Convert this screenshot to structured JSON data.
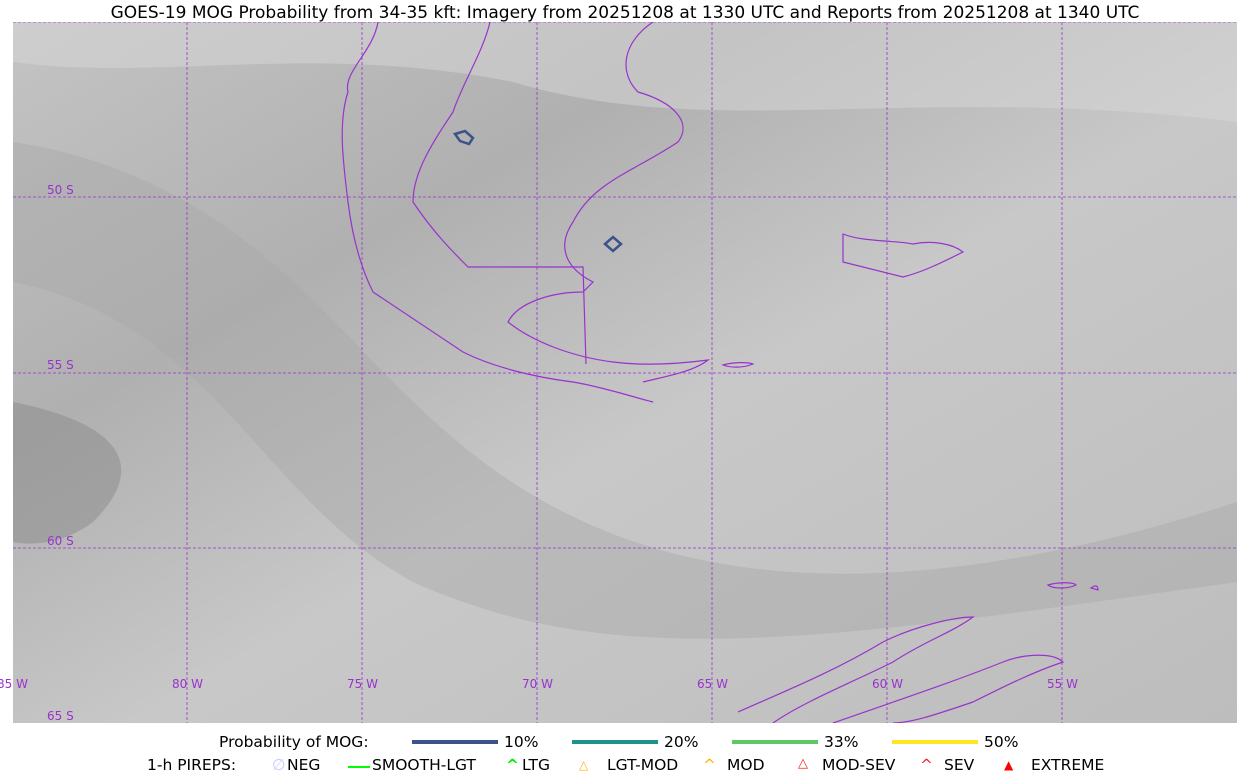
{
  "title": "GOES-19 MOG Probability from 34-35 kft: Imagery from 20251208 at 1330 UTC and Reports from 20251208 at 1340 UTC",
  "map": {
    "lon_labels": [
      "85 W",
      "80 W",
      "75 W",
      "70 W",
      "65 W",
      "60 W",
      "55 W"
    ],
    "lat_labels": [
      "50 S",
      "55 S",
      "60 S",
      "65 S"
    ],
    "coast_color": "#9933cc"
  },
  "legend": {
    "prob_title": "Probability of MOG:",
    "prob_items": [
      {
        "label": "10%",
        "color": "#3b528b"
      },
      {
        "label": "20%",
        "color": "#21918c"
      },
      {
        "label": "33%",
        "color": "#5ec962"
      },
      {
        "label": "50%",
        "color": "#fde725"
      }
    ],
    "pirep_title": "1-h PIREPS:",
    "pirep_items": [
      {
        "label": "NEG",
        "color": "#c8c8ff"
      },
      {
        "label": "SMOOTH-LGT",
        "color": "#00ff00"
      },
      {
        "label": "LTG",
        "color": "#00ee00"
      },
      {
        "label": "LGT-MOD",
        "color": "#ffb300"
      },
      {
        "label": "MOD",
        "color": "#ffb300"
      },
      {
        "label": "MOD-SEV",
        "color": "#ff2020"
      },
      {
        "label": "SEV",
        "color": "#ff2020"
      },
      {
        "label": "EXTREME",
        "color": "#ff0000"
      }
    ]
  }
}
